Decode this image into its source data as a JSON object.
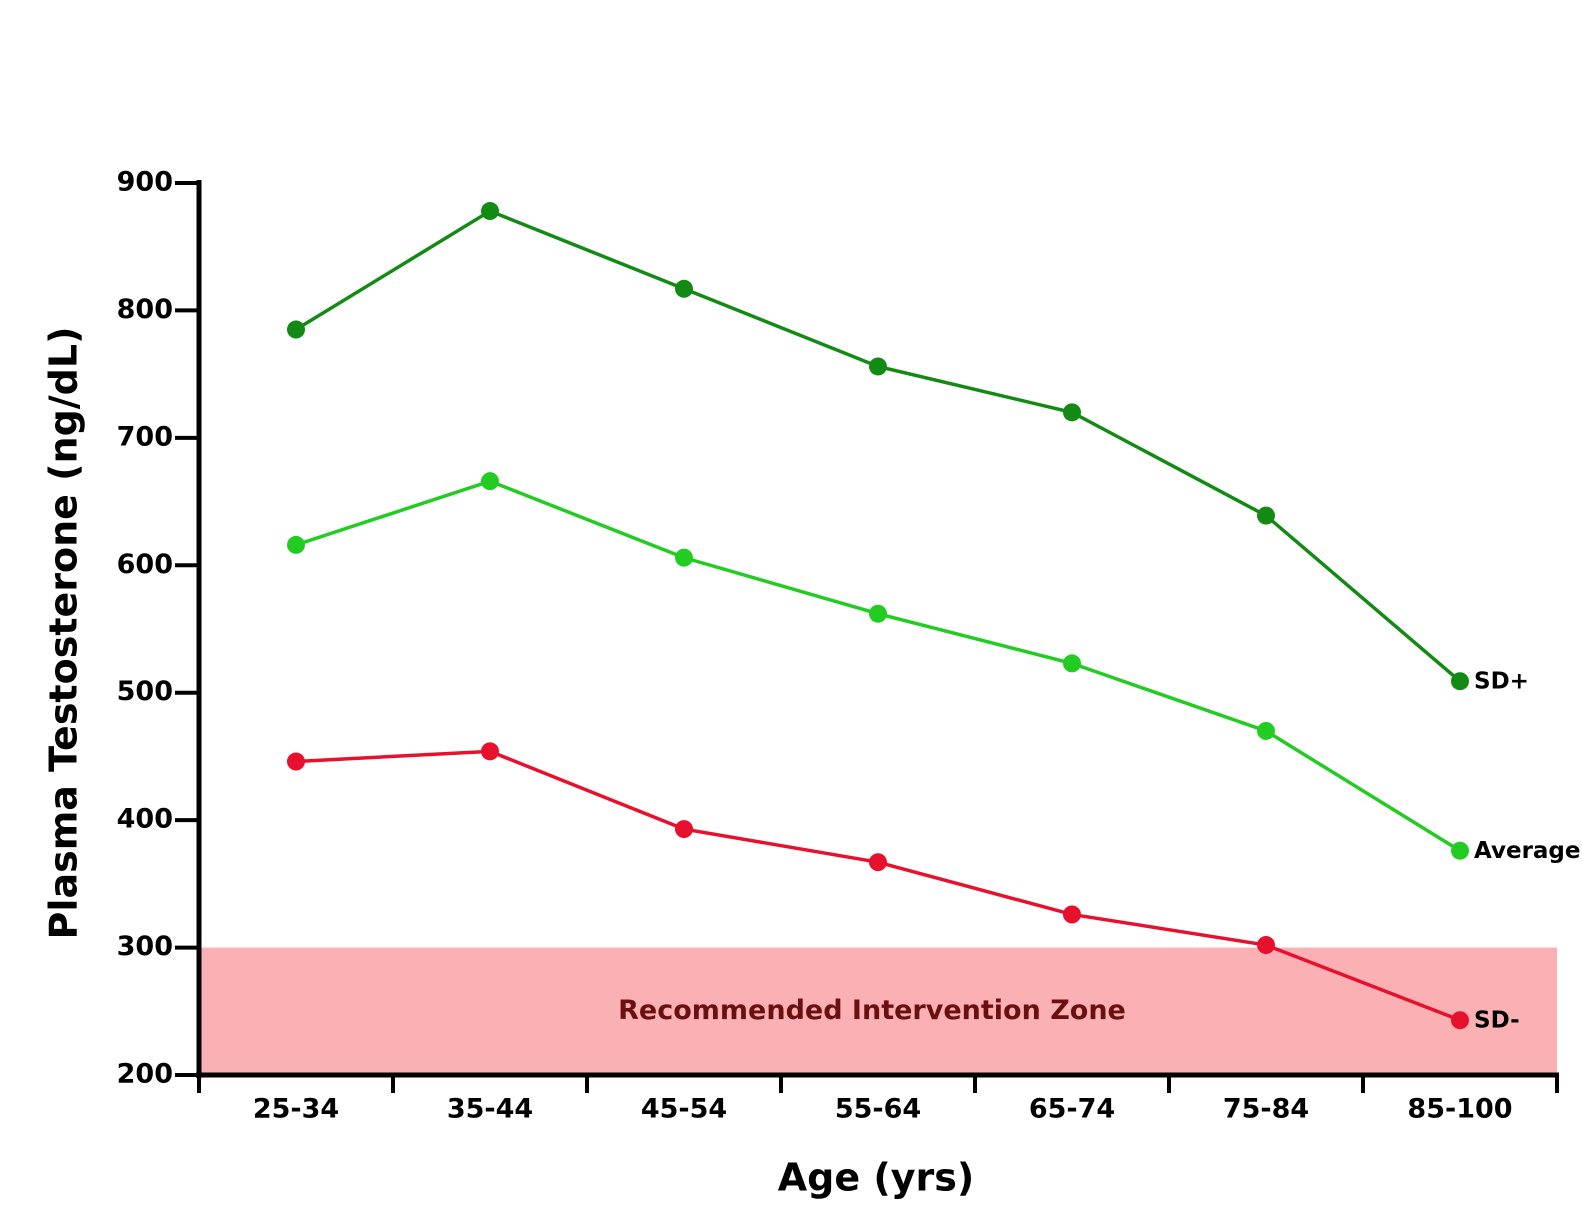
{
  "chart_data": {
    "type": "line",
    "x_label": "Age (yrs)",
    "y_label": "Plasma Testosterone (ng/dL)",
    "categories": [
      "25-34",
      "35-44",
      "45-54",
      "55-64",
      "65-74",
      "75-84",
      "85-100"
    ],
    "series": [
      {
        "name": "SD+",
        "color": "#138a13",
        "values": [
          785,
          878,
          817,
          756,
          720,
          639,
          509
        ]
      },
      {
        "name": "Average",
        "color": "#22cc22",
        "values": [
          616,
          666,
          606,
          562,
          523,
          470,
          376
        ]
      },
      {
        "name": "SD-",
        "color": "#e8112d",
        "values": [
          446,
          454,
          393,
          367,
          326,
          302,
          243
        ]
      }
    ],
    "zone": {
      "label": "Recommended Intervention Zone",
      "range": [
        200,
        300
      ],
      "color": "#fbb0b3",
      "label_color": "#6b1010"
    },
    "ylim": [
      200,
      900
    ],
    "yticks": [
      200,
      300,
      400,
      500,
      600,
      700,
      800,
      900
    ]
  }
}
